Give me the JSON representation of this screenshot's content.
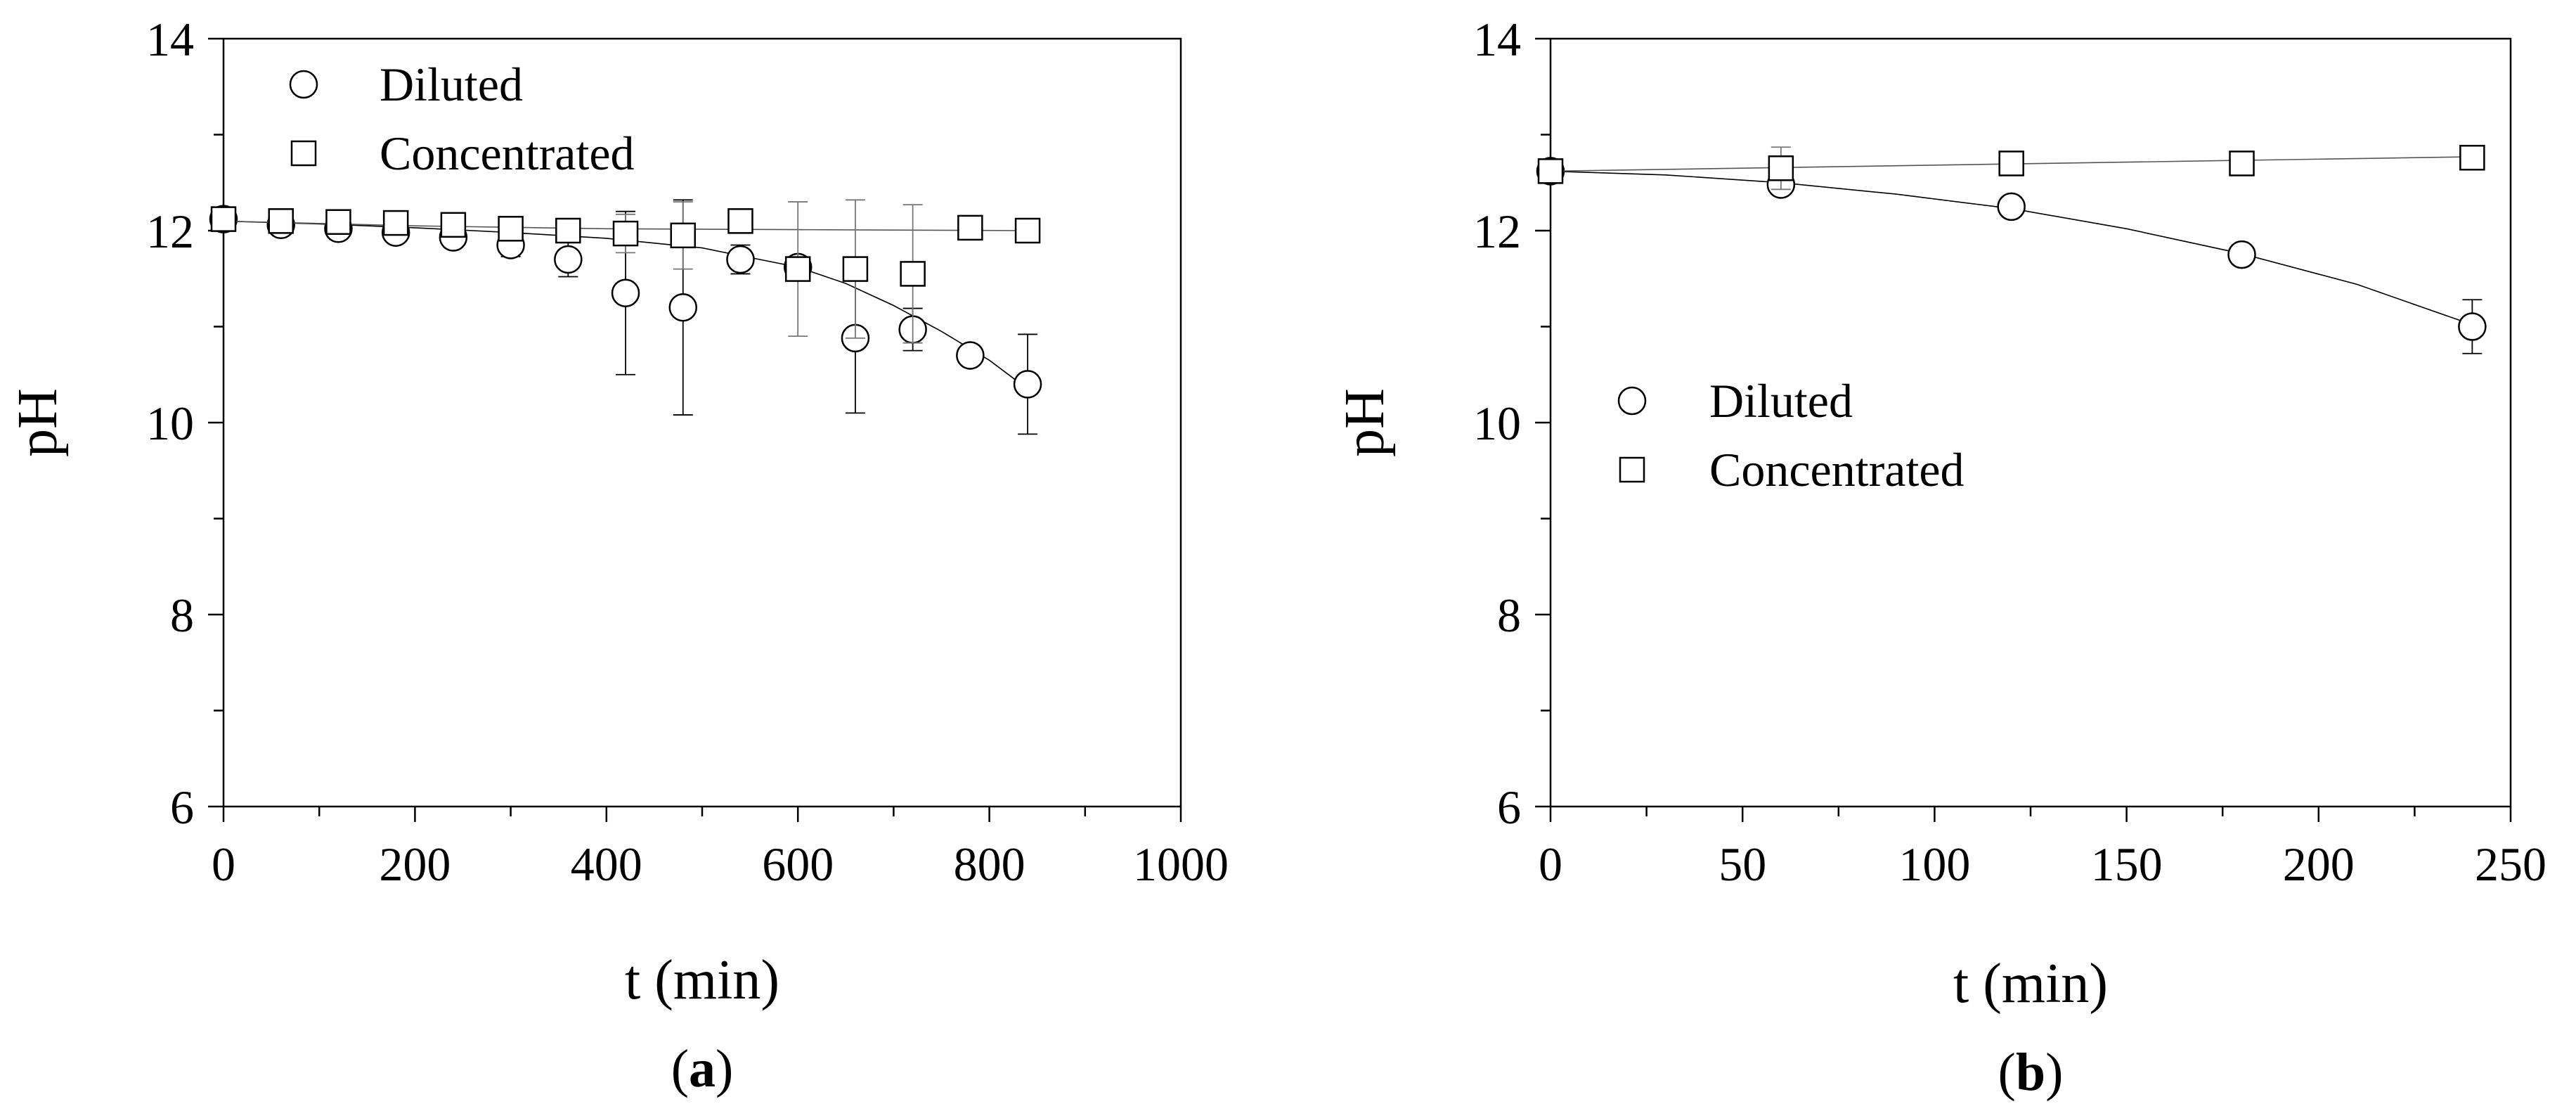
{
  "chart_data": [
    {
      "type": "scatter",
      "panel_label": "a",
      "xlabel": "t (min)",
      "ylabel": "pH",
      "xlim": [
        0,
        1000
      ],
      "ylim": [
        6,
        14
      ],
      "xticks": [
        0,
        200,
        400,
        600,
        800,
        1000
      ],
      "yticks": [
        6,
        8,
        10,
        12,
        14
      ],
      "grid": false,
      "legend_position": "top-left",
      "series": [
        {
          "name": "Diluted",
          "marker": "circle",
          "x": [
            0,
            60,
            120,
            180,
            240,
            300,
            360,
            420,
            480,
            540,
            600,
            660,
            720,
            780,
            840
          ],
          "y": [
            12.12,
            12.06,
            12.02,
            11.98,
            11.93,
            11.85,
            11.7,
            11.35,
            11.2,
            11.7,
            11.62,
            10.88,
            10.97,
            10.7,
            10.4
          ],
          "error": [
            0.05,
            0.05,
            0.05,
            0.05,
            0.05,
            0.12,
            0.18,
            0.85,
            1.12,
            0.15,
            0.1,
            0.78,
            0.22,
            0.1,
            0.52
          ],
          "fit": [
            [
              0,
              12.1
            ],
            [
              100,
              12.07
            ],
            [
              200,
              12.03
            ],
            [
              300,
              11.98
            ],
            [
              400,
              11.92
            ],
            [
              500,
              11.82
            ],
            [
              600,
              11.62
            ],
            [
              650,
              11.45
            ],
            [
              700,
              11.22
            ],
            [
              750,
              10.95
            ],
            [
              800,
              10.65
            ],
            [
              840,
              10.35
            ]
          ]
        },
        {
          "name": "Concentrated",
          "marker": "square",
          "x": [
            0,
            60,
            120,
            180,
            240,
            300,
            360,
            420,
            480,
            540,
            600,
            660,
            720,
            780,
            840
          ],
          "y": [
            12.12,
            12.1,
            12.09,
            12.08,
            12.06,
            12.02,
            12.0,
            11.97,
            11.95,
            12.1,
            11.6,
            11.6,
            11.55,
            12.03,
            12.0
          ],
          "error": [
            0.05,
            0.05,
            0.05,
            0.05,
            0.05,
            0.05,
            0.05,
            0.2,
            0.35,
            0.05,
            0.7,
            0.72,
            0.72,
            0.05,
            0.05
          ],
          "fit": [
            [
              0,
              12.1
            ],
            [
              200,
              12.05
            ],
            [
              400,
              12.02
            ],
            [
              600,
              12.01
            ],
            [
              840,
              12.0
            ]
          ]
        }
      ]
    },
    {
      "type": "scatter",
      "panel_label": "b",
      "xlabel": "t (min)",
      "ylabel": "pH",
      "xlim": [
        0,
        250
      ],
      "ylim": [
        6,
        14
      ],
      "xticks": [
        0,
        50,
        100,
        150,
        200,
        250
      ],
      "yticks": [
        6,
        8,
        10,
        12,
        14
      ],
      "grid": false,
      "legend_position": "center-left",
      "series": [
        {
          "name": "Diluted",
          "marker": "circle",
          "x": [
            0,
            60,
            120,
            180,
            240
          ],
          "y": [
            12.62,
            12.48,
            12.25,
            11.75,
            11.0
          ],
          "error": [
            0.12,
            0.1,
            0.08,
            0.08,
            0.28
          ],
          "fit": [
            [
              0,
              12.62
            ],
            [
              30,
              12.58
            ],
            [
              60,
              12.5
            ],
            [
              90,
              12.38
            ],
            [
              120,
              12.23
            ],
            [
              150,
              12.02
            ],
            [
              180,
              11.76
            ],
            [
              210,
              11.44
            ],
            [
              240,
              11.02
            ]
          ]
        },
        {
          "name": "Concentrated",
          "marker": "square",
          "x": [
            0,
            60,
            120,
            180,
            240
          ],
          "y": [
            12.62,
            12.65,
            12.7,
            12.7,
            12.76
          ],
          "error": [
            0.12,
            0.22,
            0.08,
            0.06,
            0.06
          ],
          "fit": [
            [
              0,
              12.62
            ],
            [
              240,
              12.77
            ]
          ]
        }
      ]
    }
  ]
}
